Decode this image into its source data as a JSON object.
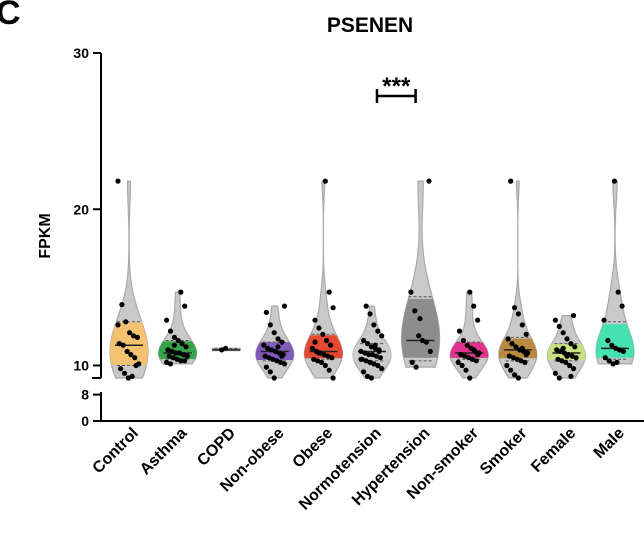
{
  "panel_label": "C",
  "chart_data": {
    "type": "violin",
    "title": "PSENEN",
    "ylabel": "FPKM",
    "xlabel": "",
    "y_axis": {
      "upper_segment": {
        "range": [
          9.2,
          30
        ],
        "ticks": [
          10,
          20,
          30
        ]
      },
      "lower_segment": {
        "range": [
          0,
          8.8
        ],
        "ticks": [
          0,
          8
        ]
      },
      "break": true
    },
    "significance": [
      {
        "from": "Normotension",
        "to": "Hypertension",
        "label": "***"
      }
    ],
    "grid": false,
    "categories": [
      "Control",
      "Asthma",
      "COPD",
      "Non-obese",
      "Obese",
      "Normotension",
      "Hypertension",
      "Non-smoker",
      "Smoker",
      "Female",
      "Male"
    ],
    "series": [
      {
        "category": "Control",
        "color": "#F5C26B",
        "median": 11.3,
        "q1": 10.0,
        "q3": 12.8,
        "min": 9.2,
        "max": 21.8,
        "points": [
          21.8,
          13.9,
          12.8,
          12.1,
          11.9,
          11.8,
          11.4,
          11.3,
          10.9,
          10.7,
          10.5,
          10.1,
          9.8,
          9.5,
          9.2,
          9.3,
          10.0,
          12.6
        ]
      },
      {
        "category": "Asthma",
        "color": "#2EA043",
        "median": 10.8,
        "q1": 10.4,
        "q3": 11.6,
        "min": 10.1,
        "max": 14.7,
        "points": [
          14.7,
          13.8,
          12.9,
          12.2,
          11.8,
          11.6,
          11.4,
          11.2,
          11.0,
          10.9,
          10.8,
          10.8,
          10.7,
          10.6,
          10.6,
          10.5,
          10.4,
          10.3,
          10.3,
          10.2,
          10.1,
          11.3
        ]
      },
      {
        "category": "COPD",
        "color": "#9AA7C6",
        "median": 11.0,
        "q1": 11.0,
        "q3": 11.1,
        "min": 10.95,
        "max": 11.1,
        "points": [
          11.0,
          11.1
        ]
      },
      {
        "category": "Non-obese",
        "color": "#7E54B8",
        "median": 10.9,
        "q1": 10.3,
        "q3": 11.5,
        "min": 9.2,
        "max": 13.8,
        "points": [
          13.8,
          13.4,
          12.6,
          12.1,
          11.7,
          11.5,
          11.3,
          11.1,
          11.0,
          10.9,
          10.8,
          10.7,
          10.6,
          10.5,
          10.4,
          10.3,
          10.2,
          10.1,
          9.9,
          9.6,
          9.2,
          11.2,
          10.6
        ]
      },
      {
        "category": "Obese",
        "color": "#E8412A",
        "median": 10.9,
        "q1": 10.4,
        "q3": 12.0,
        "min": 9.2,
        "max": 21.8,
        "points": [
          21.8,
          14.7,
          13.7,
          12.9,
          12.4,
          12.0,
          11.6,
          11.3,
          11.1,
          10.9,
          10.8,
          10.7,
          10.6,
          10.5,
          10.4,
          10.3,
          10.2,
          10.0,
          9.7,
          9.2,
          11.5,
          10.8
        ]
      },
      {
        "category": "Normotension",
        "color": "#CFCFCF",
        "median": 10.9,
        "q1": 10.3,
        "q3": 11.4,
        "min": 9.2,
        "max": 13.8,
        "points": [
          13.8,
          13.3,
          12.6,
          12.2,
          11.9,
          11.6,
          11.4,
          11.2,
          11.1,
          11.0,
          10.9,
          10.8,
          10.7,
          10.7,
          10.6,
          10.5,
          10.4,
          10.3,
          10.2,
          10.1,
          10.0,
          9.8,
          9.6,
          9.3,
          9.2,
          11.3,
          10.9,
          10.4
        ]
      },
      {
        "category": "Hypertension",
        "color": "#8A8A8A",
        "median": 11.6,
        "q1": 10.3,
        "q3": 14.4,
        "min": 9.9,
        "max": 21.8,
        "points": [
          21.8,
          14.7,
          13.5,
          11.9,
          11.6,
          11.5,
          10.9,
          10.2,
          9.9,
          13.0
        ]
      },
      {
        "category": "Non-smoker",
        "color": "#E02B8A",
        "median": 10.8,
        "q1": 10.4,
        "q3": 11.5,
        "min": 9.2,
        "max": 14.7,
        "points": [
          14.7,
          13.8,
          12.9,
          12.2,
          11.6,
          11.3,
          11.1,
          10.9,
          10.8,
          10.7,
          10.6,
          10.5,
          10.4,
          10.3,
          10.2,
          10.0,
          9.7,
          9.2,
          11.0,
          10.7
        ]
      },
      {
        "category": "Smoker",
        "color": "#B8863B",
        "median": 11.0,
        "q1": 10.3,
        "q3": 11.8,
        "min": 9.2,
        "max": 21.8,
        "points": [
          21.8,
          13.7,
          13.3,
          12.6,
          12.0,
          11.7,
          11.4,
          11.2,
          11.0,
          10.9,
          10.8,
          10.6,
          10.5,
          10.4,
          10.3,
          10.2,
          10.0,
          9.7,
          9.4,
          9.2,
          11.1,
          10.7
        ]
      },
      {
        "category": "Female",
        "color": "#C8E07E",
        "median": 10.8,
        "q1": 10.3,
        "q3": 11.4,
        "min": 9.2,
        "max": 13.2,
        "points": [
          13.2,
          12.9,
          12.5,
          12.1,
          11.7,
          11.4,
          11.2,
          11.0,
          10.9,
          10.8,
          10.7,
          10.6,
          10.5,
          10.4,
          10.3,
          10.2,
          10.0,
          9.8,
          9.5,
          9.2,
          11.1,
          10.6,
          9.3
        ]
      },
      {
        "category": "Male",
        "color": "#3EE3B0",
        "median": 11.1,
        "q1": 10.4,
        "q3": 12.8,
        "min": 10.1,
        "max": 21.8,
        "points": [
          21.8,
          14.7,
          13.8,
          12.9,
          11.6,
          11.3,
          11.1,
          11.0,
          10.9,
          10.5,
          10.3,
          10.1,
          10.2
        ]
      }
    ]
  }
}
